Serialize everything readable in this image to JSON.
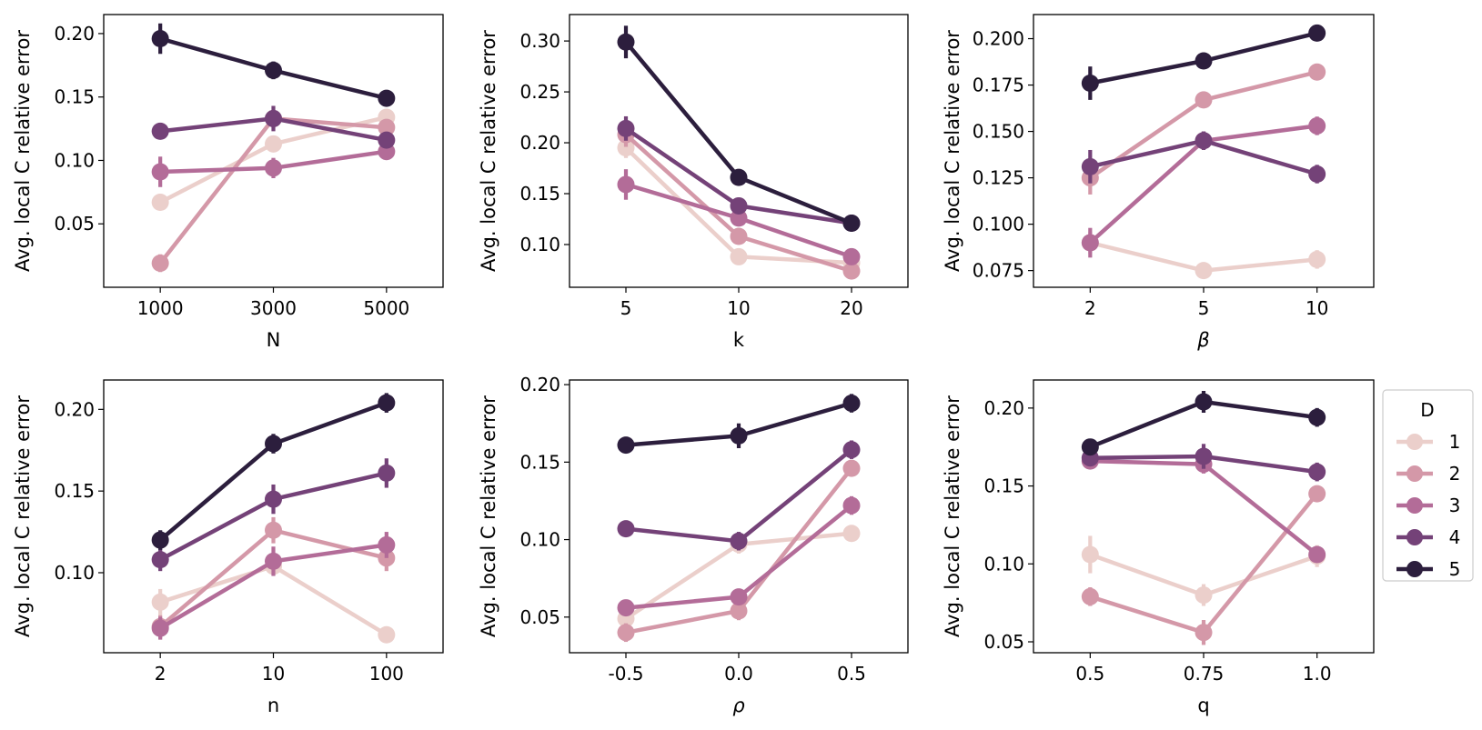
{
  "chart_data": [
    {
      "type": "line",
      "xlabel": "N",
      "ylabel": "Avg. local C relative error",
      "categories": [
        "1000",
        "3000",
        "5000"
      ],
      "ylim": [
        0.0,
        0.215
      ],
      "yticks": [
        "0.05",
        "0.10",
        "0.15",
        "0.20"
      ],
      "ytick_values": [
        0.05,
        0.1,
        0.15,
        0.2
      ],
      "series": [
        {
          "name": "1",
          "values": [
            0.067,
            0.113,
            0.134
          ],
          "err": [
            0.006,
            0.006,
            0.005
          ]
        },
        {
          "name": "2",
          "values": [
            0.019,
            0.133,
            0.126
          ],
          "err": [
            0.007,
            0.006,
            0.005
          ]
        },
        {
          "name": "3",
          "values": [
            0.091,
            0.094,
            0.107
          ],
          "err": [
            0.012,
            0.008,
            0.005
          ]
        },
        {
          "name": "4",
          "values": [
            0.123,
            0.133,
            0.116
          ],
          "err": [
            0.004,
            0.01,
            0.006
          ]
        },
        {
          "name": "5",
          "values": [
            0.196,
            0.171,
            0.149
          ],
          "err": [
            0.012,
            0.007,
            0.004
          ]
        }
      ]
    },
    {
      "type": "line",
      "xlabel": "k",
      "ylabel": "Avg. local C relative error",
      "categories": [
        "5",
        "10",
        "20"
      ],
      "ylim": [
        0.058,
        0.326
      ],
      "yticks": [
        "0.10",
        "0.15",
        "0.20",
        "0.25",
        "0.30"
      ],
      "ytick_values": [
        0.1,
        0.15,
        0.2,
        0.25,
        0.3
      ],
      "series": [
        {
          "name": "1",
          "values": [
            0.195,
            0.088,
            0.082
          ],
          "err": [
            0.01,
            0.006,
            0.004
          ]
        },
        {
          "name": "2",
          "values": [
            0.208,
            0.108,
            0.074
          ],
          "err": [
            0.012,
            0.006,
            0.004
          ]
        },
        {
          "name": "3",
          "values": [
            0.159,
            0.126,
            0.088
          ],
          "err": [
            0.015,
            0.006,
            0.004
          ]
        },
        {
          "name": "4",
          "values": [
            0.214,
            0.138,
            0.121
          ],
          "err": [
            0.012,
            0.006,
            0.004
          ]
        },
        {
          "name": "5",
          "values": [
            0.299,
            0.166,
            0.121
          ],
          "err": [
            0.016,
            0.006,
            0.004
          ]
        }
      ]
    },
    {
      "type": "line",
      "xlabel": "β",
      "ylabel": "Avg. local C relative error",
      "categories": [
        "2",
        "5",
        "10"
      ],
      "ylim": [
        0.066,
        0.213
      ],
      "yticks": [
        "0.075",
        "0.100",
        "0.125",
        "0.150",
        "0.175",
        "0.200"
      ],
      "ytick_values": [
        0.075,
        0.1,
        0.125,
        0.15,
        0.175,
        0.2
      ],
      "series": [
        {
          "name": "1",
          "values": [
            0.09,
            0.075,
            0.081
          ],
          "err": [
            0.006,
            0.004,
            0.005
          ]
        },
        {
          "name": "2",
          "values": [
            0.125,
            0.167,
            0.182
          ],
          "err": [
            0.009,
            0.004,
            0.004
          ]
        },
        {
          "name": "3",
          "values": [
            0.09,
            0.145,
            0.153
          ],
          "err": [
            0.008,
            0.005,
            0.005
          ]
        },
        {
          "name": "4",
          "values": [
            0.131,
            0.145,
            0.127
          ],
          "err": [
            0.009,
            0.005,
            0.005
          ]
        },
        {
          "name": "5",
          "values": [
            0.176,
            0.188,
            0.203
          ],
          "err": [
            0.009,
            0.004,
            0.003
          ]
        }
      ]
    },
    {
      "type": "line",
      "xlabel": "n",
      "ylabel": "Avg. local C relative error",
      "categories": [
        "2",
        "10",
        "100"
      ],
      "ylim": [
        0.051,
        0.218
      ],
      "yticks": [
        "0.10",
        "0.15",
        "0.20"
      ],
      "ytick_values": [
        0.1,
        0.15,
        0.2
      ],
      "series": [
        {
          "name": "1",
          "values": [
            0.082,
            0.104,
            0.062
          ],
          "err": [
            0.008,
            0.005,
            0.003
          ]
        },
        {
          "name": "2",
          "values": [
            0.067,
            0.126,
            0.109
          ],
          "err": [
            0.007,
            0.008,
            0.008
          ]
        },
        {
          "name": "3",
          "values": [
            0.066,
            0.107,
            0.117
          ],
          "err": [
            0.007,
            0.009,
            0.008
          ]
        },
        {
          "name": "4",
          "values": [
            0.108,
            0.145,
            0.161
          ],
          "err": [
            0.007,
            0.009,
            0.009
          ]
        },
        {
          "name": "5",
          "values": [
            0.12,
            0.179,
            0.204
          ],
          "err": [
            0.006,
            0.006,
            0.006
          ]
        }
      ]
    },
    {
      "type": "line",
      "xlabel": "ρ",
      "ylabel": "Avg. local C relative error",
      "categories": [
        "-0.5",
        "0.0",
        "0.5"
      ],
      "ylim": [
        0.027,
        0.203
      ],
      "yticks": [
        "0.05",
        "0.10",
        "0.15",
        "0.20"
      ],
      "ytick_values": [
        0.05,
        0.1,
        0.15,
        0.2
      ],
      "series": [
        {
          "name": "1",
          "values": [
            0.049,
            0.097,
            0.104
          ],
          "err": [
            0.006,
            0.006,
            0.005
          ]
        },
        {
          "name": "2",
          "values": [
            0.04,
            0.054,
            0.146
          ],
          "err": [
            0.006,
            0.006,
            0.005
          ]
        },
        {
          "name": "3",
          "values": [
            0.056,
            0.063,
            0.122
          ],
          "err": [
            0.005,
            0.005,
            0.006
          ]
        },
        {
          "name": "4",
          "values": [
            0.107,
            0.099,
            0.158
          ],
          "err": [
            0.005,
            0.006,
            0.006
          ]
        },
        {
          "name": "5",
          "values": [
            0.161,
            0.167,
            0.188
          ],
          "err": [
            0.005,
            0.008,
            0.006
          ]
        }
      ]
    },
    {
      "type": "line",
      "xlabel": "q",
      "ylabel": "Avg. local C relative error",
      "categories": [
        "0.5",
        "0.75",
        "1.0"
      ],
      "ylim": [
        0.043,
        0.218
      ],
      "yticks": [
        "0.05",
        "0.10",
        "0.15",
        "0.20"
      ],
      "ytick_values": [
        0.05,
        0.1,
        0.15,
        0.2
      ],
      "series": [
        {
          "name": "1",
          "values": [
            0.106,
            0.08,
            0.105
          ],
          "err": [
            0.012,
            0.007,
            0.007
          ]
        },
        {
          "name": "2",
          "values": [
            0.079,
            0.056,
            0.145
          ],
          "err": [
            0.006,
            0.008,
            0.005
          ]
        },
        {
          "name": "3",
          "values": [
            0.166,
            0.164,
            0.106
          ],
          "err": [
            0.004,
            0.006,
            0.005
          ]
        },
        {
          "name": "4",
          "values": [
            0.168,
            0.169,
            0.159
          ],
          "err": [
            0.004,
            0.008,
            0.006
          ]
        },
        {
          "name": "5",
          "values": [
            0.175,
            0.204,
            0.194
          ],
          "err": [
            0.005,
            0.007,
            0.006
          ]
        }
      ]
    }
  ],
  "legend": {
    "title": "D",
    "placement": "right",
    "entries": [
      "1",
      "2",
      "3",
      "4",
      "5"
    ]
  },
  "colors": [
    "#ebcfcb",
    "#d498a8",
    "#b36c98",
    "#744278",
    "#2c1e3d"
  ]
}
